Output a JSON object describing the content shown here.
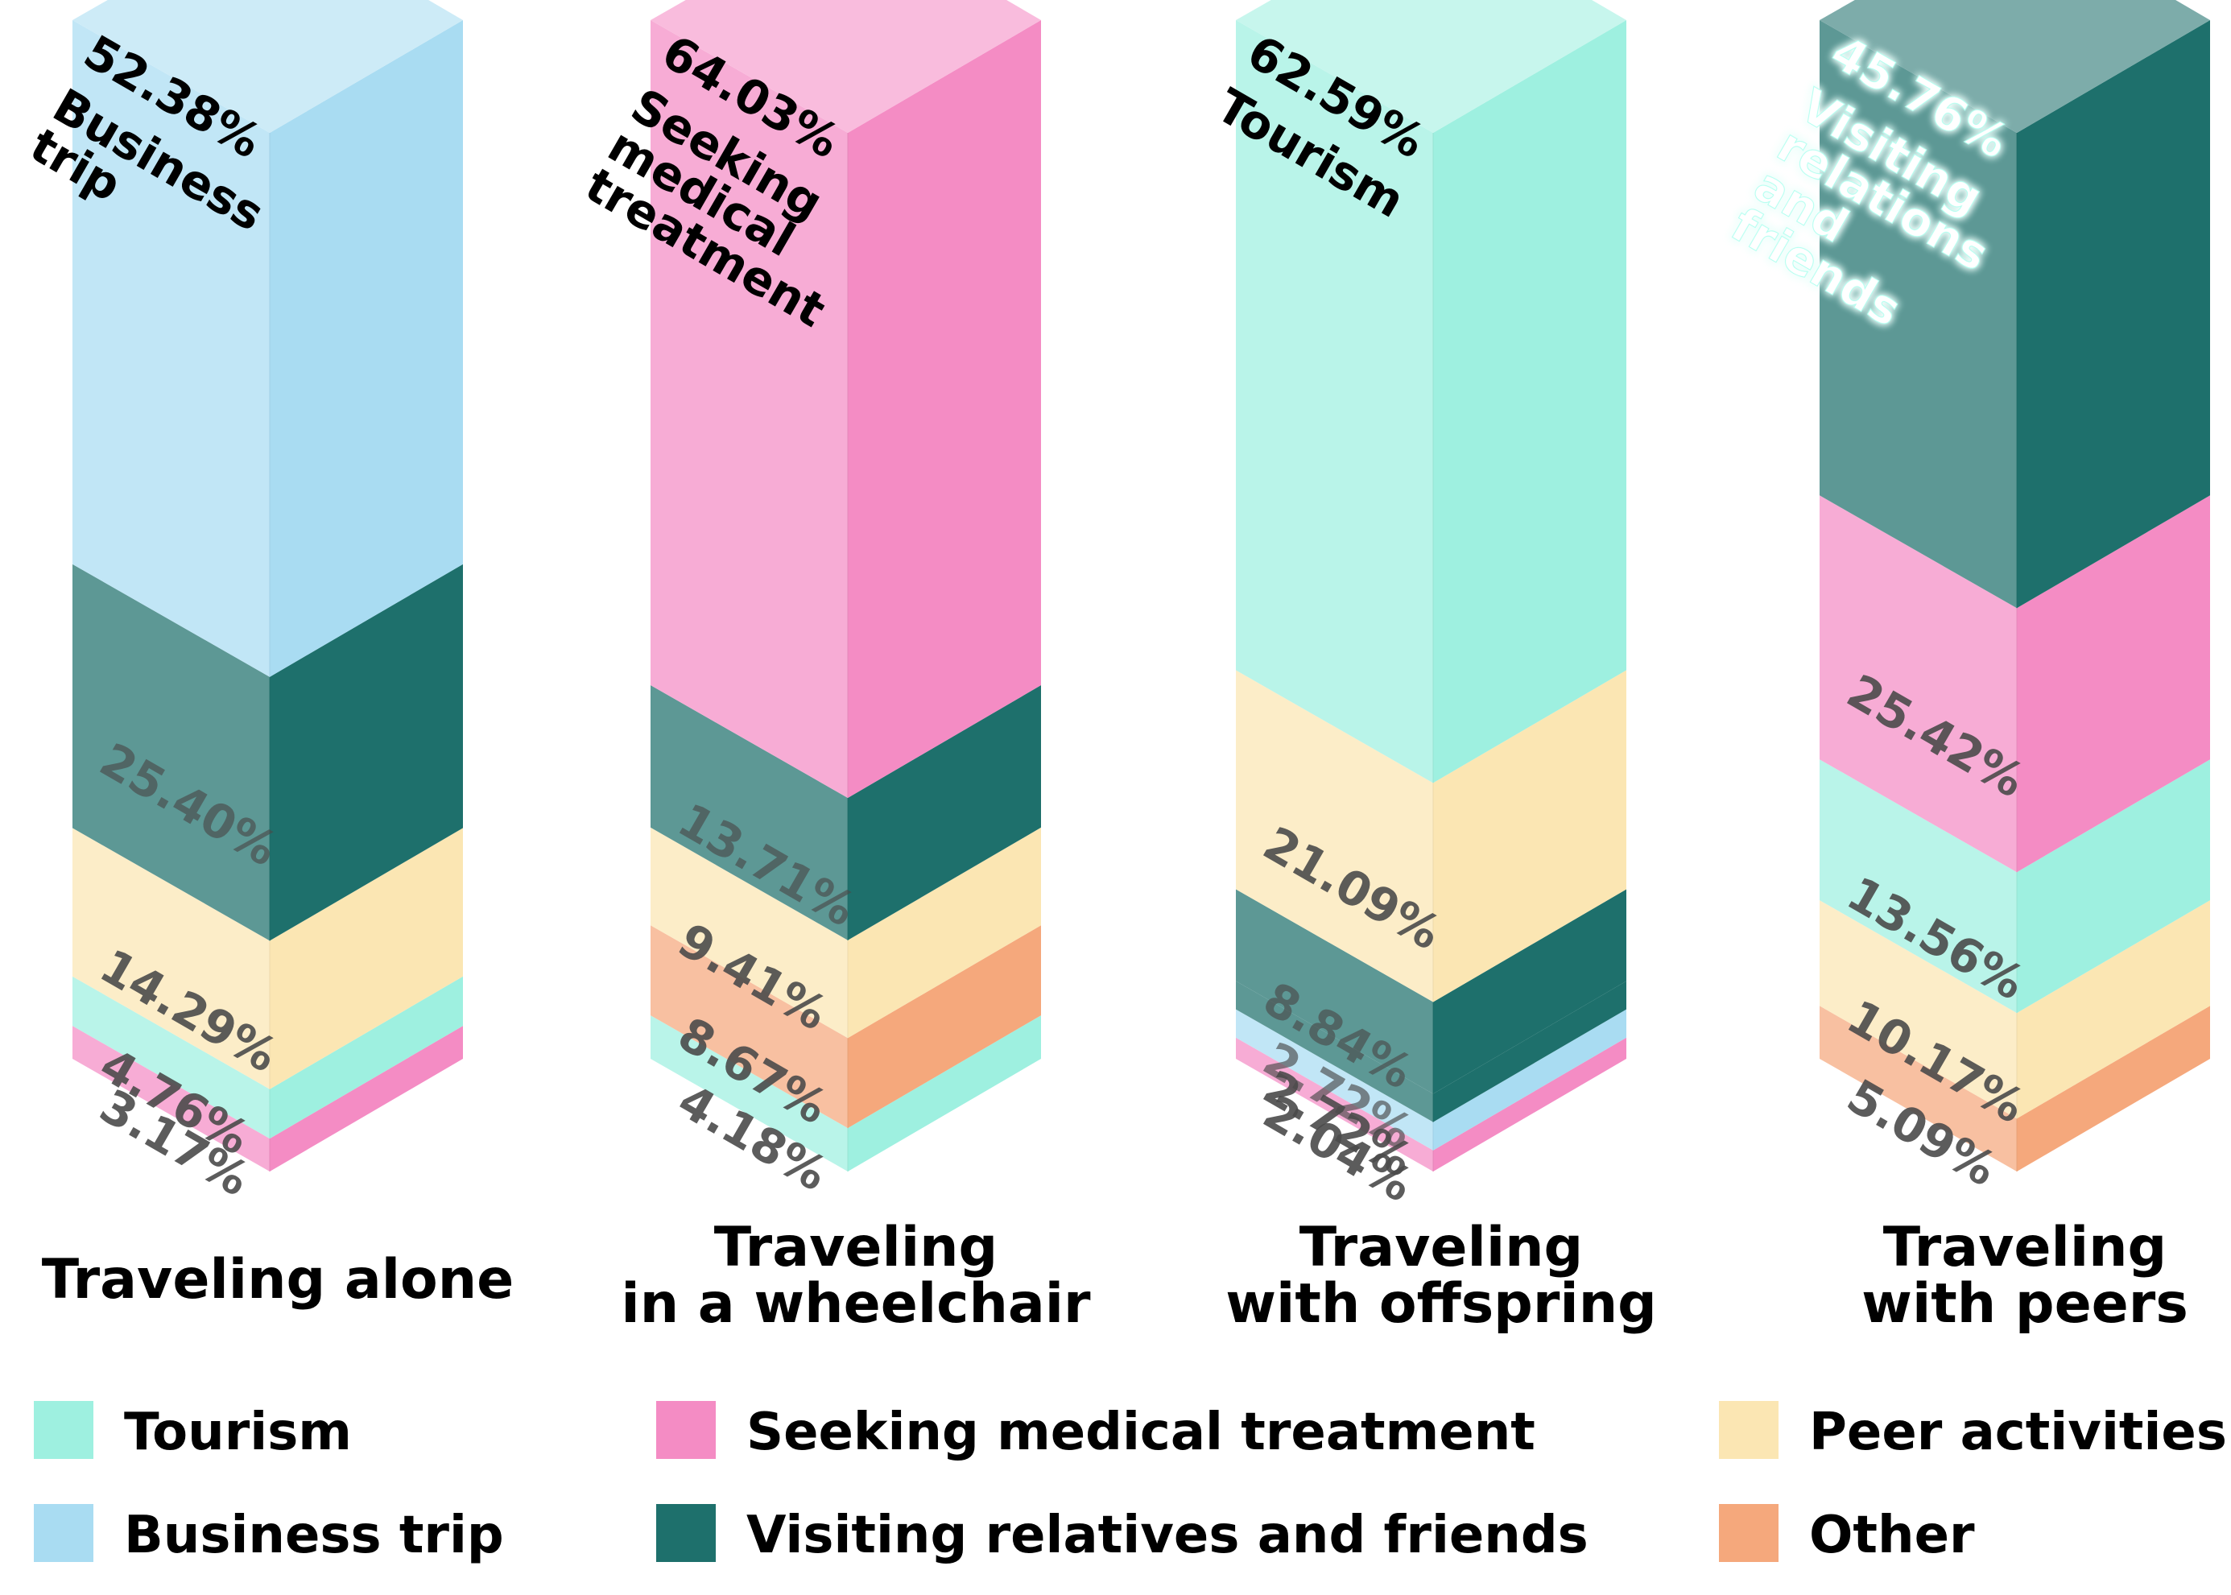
{
  "chart_data": {
    "type": "bar",
    "subtype": "stacked-3d-column",
    "title": "",
    "xlabel": "",
    "ylabel": "",
    "ylim": [
      0,
      100
    ],
    "legend": {
      "placement": "bottom",
      "items": [
        {
          "name": "Tourism",
          "color": "#9EF0E0"
        },
        {
          "name": "Business trip",
          "color": "#A9DCF2"
        },
        {
          "name": "Seeking medical treatment",
          "color": "#F48CC4"
        },
        {
          "name": "Visiting relatives and friends",
          "color": "#1E706C"
        },
        {
          "name": "Peer activities",
          "color": "#FBE6B3"
        },
        {
          "name": "Other",
          "color": "#F5A87C"
        }
      ]
    },
    "categories": [
      {
        "lines": [
          "Traveling  alone"
        ],
        "segments": [
          {
            "series": "Seeking medical treatment",
            "value": 3.17,
            "label": "3.17%"
          },
          {
            "series": "Tourism",
            "value": 4.76,
            "label": "4.76%"
          },
          {
            "series": "Peer activities",
            "value": 14.29,
            "label": "14.29%"
          },
          {
            "series": "Visiting relatives and friends",
            "value": 25.4,
            "label": "25.40%"
          },
          {
            "series": "Business trip",
            "value": 52.38,
            "label": "52.38%",
            "name_lines": [
              "Business",
              "trip"
            ]
          }
        ]
      },
      {
        "lines": [
          "Traveling",
          "in a wheelchair"
        ],
        "segments": [
          {
            "series": "Tourism",
            "value": 4.18,
            "label": "4.18%"
          },
          {
            "series": "Other",
            "value": 8.67,
            "label": "8.67%"
          },
          {
            "series": "Peer activities",
            "value": 9.41,
            "label": "9.41%"
          },
          {
            "series": "Visiting relatives and friends",
            "value": 13.71,
            "label": "13.71%"
          },
          {
            "series": "Seeking medical treatment",
            "value": 64.03,
            "label": "64.03%",
            "name_lines": [
              "Seeking",
              "medical",
              "treatment"
            ]
          }
        ]
      },
      {
        "lines": [
          "Traveling",
          "with offspring"
        ],
        "segments": [
          {
            "series": "Seeking medical treatment",
            "value": 2.04,
            "label": "2.04%"
          },
          {
            "series": "Business trip",
            "value": 2.72,
            "label": "2.72%"
          },
          {
            "series": "Visiting relatives and friends",
            "value": 2.72,
            "label": "2.72%"
          },
          {
            "series": "Visiting relatives and friends",
            "value": 8.84,
            "label": "8.84%"
          },
          {
            "series": "Peer activities",
            "value": 21.09,
            "label": "21.09%"
          },
          {
            "series": "Tourism",
            "value": 62.59,
            "label": "62.59%",
            "name_lines": [
              "Tourism"
            ]
          }
        ]
      },
      {
        "lines": [
          "Traveling",
          "with peers"
        ],
        "segments": [
          {
            "series": "Other",
            "value": 5.09,
            "label": "5.09%"
          },
          {
            "series": "Peer activities",
            "value": 10.17,
            "label": "10.17%"
          },
          {
            "series": "Tourism",
            "value": 13.56,
            "label": "13.56%"
          },
          {
            "series": "Seeking medical treatment",
            "value": 25.42,
            "label": "25.42%"
          },
          {
            "series": "Visiting relatives and friends",
            "value": 45.76,
            "label": "45.76%",
            "name_lines": [
              "Visiting",
              "relations",
              "and",
              "friends"
            ]
          }
        ]
      }
    ]
  }
}
